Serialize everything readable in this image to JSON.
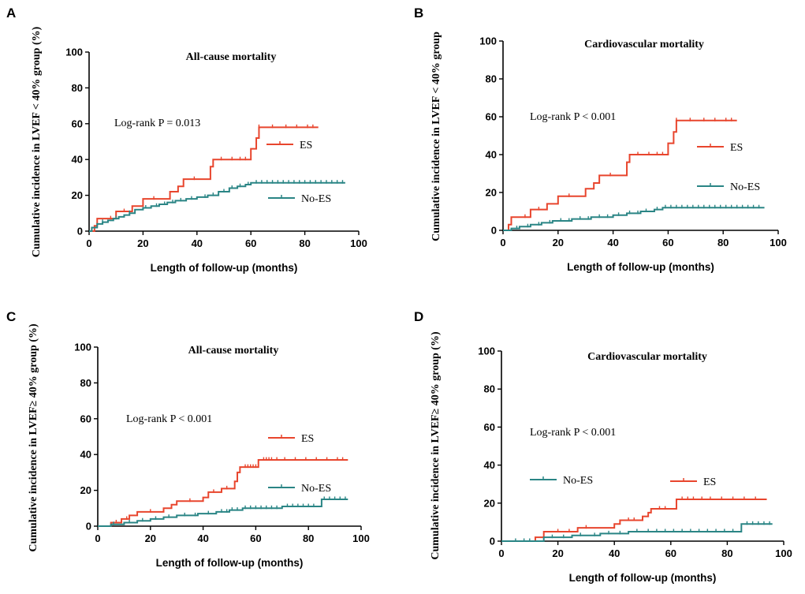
{
  "colors": {
    "ES": "#e8452d",
    "No-ES": "#2a8585",
    "axis": "#000000"
  },
  "chart_data": [
    {
      "panel": "A",
      "type": "line",
      "title": "All-cause mortality",
      "xlabel": "Length of follow-up (months)",
      "ylabel": "Cumulative incidence in LVEF < 40% group (%)",
      "xlim": [
        0,
        100
      ],
      "ylim": [
        0,
        100
      ],
      "xticks": [
        0,
        20,
        40,
        60,
        80,
        100
      ],
      "yticks": [
        0,
        20,
        40,
        60,
        80,
        100
      ],
      "annotation": "Log-rank P = 0.013",
      "series": [
        {
          "name": "ES",
          "steps": [
            [
              0,
              0
            ],
            [
              2,
              3
            ],
            [
              3,
              7
            ],
            [
              10,
              7
            ],
            [
              10,
              11
            ],
            [
              16,
              11
            ],
            [
              16,
              14
            ],
            [
              20,
              14
            ],
            [
              20,
              18
            ],
            [
              30,
              18
            ],
            [
              30,
              22
            ],
            [
              33,
              22
            ],
            [
              33,
              25
            ],
            [
              35,
              25
            ],
            [
              35,
              29
            ],
            [
              45,
              29
            ],
            [
              45,
              36
            ],
            [
              46,
              36
            ],
            [
              46,
              40
            ],
            [
              60,
              40
            ],
            [
              60,
              46
            ],
            [
              62,
              46
            ],
            [
              62,
              52
            ],
            [
              63,
              52
            ],
            [
              63,
              58
            ],
            [
              85,
              58
            ]
          ],
          "censor": [
            8,
            13,
            24,
            39,
            49,
            53,
            56,
            58,
            63,
            68,
            73,
            77,
            81,
            83
          ]
        },
        {
          "name": "No-ES",
          "steps": [
            [
              0,
              0
            ],
            [
              1,
              2
            ],
            [
              3,
              4
            ],
            [
              5,
              5
            ],
            [
              7,
              6
            ],
            [
              9,
              7
            ],
            [
              11,
              8
            ],
            [
              13,
              9
            ],
            [
              15,
              10
            ],
            [
              17,
              12
            ],
            [
              20,
              13
            ],
            [
              23,
              14
            ],
            [
              26,
              15
            ],
            [
              29,
              16
            ],
            [
              32,
              17
            ],
            [
              36,
              18
            ],
            [
              40,
              19
            ],
            [
              44,
              20
            ],
            [
              48,
              22
            ],
            [
              52,
              24
            ],
            [
              55,
              25
            ],
            [
              58,
              26
            ],
            [
              60,
              27
            ],
            [
              95,
              27
            ]
          ],
          "censor": [
            5,
            10,
            15,
            21,
            25,
            28,
            31,
            34,
            38,
            43,
            46,
            50,
            53,
            56,
            59,
            62,
            64,
            66,
            68,
            70,
            72,
            74,
            76,
            78,
            80,
            82,
            84,
            86,
            88,
            90,
            92,
            94
          ]
        }
      ]
    },
    {
      "panel": "B",
      "type": "line",
      "title": "Cardiovascular mortality",
      "xlabel": "Length of follow-up (months)",
      "ylabel": "Cumulative incidence in LVEF < 40% group",
      "xlim": [
        0,
        100
      ],
      "ylim": [
        0,
        100
      ],
      "xticks": [
        0,
        20,
        40,
        60,
        80,
        100
      ],
      "yticks": [
        0,
        20,
        40,
        60,
        80,
        100
      ],
      "annotation": "Log-rank P < 0.001",
      "series": [
        {
          "name": "ES",
          "steps": [
            [
              0,
              0
            ],
            [
              2,
              3
            ],
            [
              3,
              7
            ],
            [
              10,
              7
            ],
            [
              10,
              11
            ],
            [
              16,
              11
            ],
            [
              16,
              14
            ],
            [
              20,
              14
            ],
            [
              20,
              18
            ],
            [
              30,
              18
            ],
            [
              30,
              22
            ],
            [
              33,
              22
            ],
            [
              33,
              25
            ],
            [
              35,
              25
            ],
            [
              35,
              29
            ],
            [
              45,
              29
            ],
            [
              45,
              36
            ],
            [
              46,
              36
            ],
            [
              46,
              40
            ],
            [
              60,
              40
            ],
            [
              60,
              46
            ],
            [
              62,
              46
            ],
            [
              62,
              52
            ],
            [
              63,
              52
            ],
            [
              63,
              58
            ],
            [
              85,
              58
            ]
          ],
          "censor": [
            8,
            13,
            24,
            39,
            49,
            53,
            56,
            58,
            63,
            68,
            73,
            77,
            81,
            83
          ]
        },
        {
          "name": "No-ES",
          "steps": [
            [
              0,
              0
            ],
            [
              3,
              1
            ],
            [
              6,
              2
            ],
            [
              10,
              3
            ],
            [
              14,
              4
            ],
            [
              18,
              5
            ],
            [
              25,
              6
            ],
            [
              32,
              7
            ],
            [
              40,
              8
            ],
            [
              45,
              9
            ],
            [
              50,
              10
            ],
            [
              55,
              11
            ],
            [
              58,
              12
            ],
            [
              95,
              12
            ]
          ],
          "censor": [
            5,
            9,
            13,
            17,
            21,
            24,
            28,
            31,
            35,
            38,
            42,
            46,
            49,
            52,
            56,
            59,
            61,
            63,
            65,
            67,
            69,
            71,
            73,
            75,
            77,
            79,
            81,
            83,
            85,
            87,
            89,
            91,
            93
          ]
        }
      ]
    },
    {
      "panel": "C",
      "type": "line",
      "title": "All-cause mortality",
      "xlabel": "Length of follow-up (months)",
      "ylabel": "Cumulative incidence in LVEF≥ 40% group (%)",
      "xlim": [
        0,
        100
      ],
      "ylim": [
        0,
        100
      ],
      "xticks": [
        0,
        20,
        40,
        60,
        80,
        100
      ],
      "yticks": [
        0,
        20,
        40,
        60,
        80,
        100
      ],
      "annotation": "Log-rank P < 0.001",
      "series": [
        {
          "name": "ES",
          "steps": [
            [
              0,
              0
            ],
            [
              5,
              0
            ],
            [
              5,
              2
            ],
            [
              9,
              2
            ],
            [
              9,
              4
            ],
            [
              12,
              4
            ],
            [
              12,
              6
            ],
            [
              15,
              6
            ],
            [
              15,
              8
            ],
            [
              25,
              8
            ],
            [
              25,
              10
            ],
            [
              28,
              10
            ],
            [
              28,
              12
            ],
            [
              30,
              12
            ],
            [
              30,
              14
            ],
            [
              40,
              14
            ],
            [
              40,
              16
            ],
            [
              42,
              16
            ],
            [
              42,
              19
            ],
            [
              47,
              19
            ],
            [
              47,
              21
            ],
            [
              52,
              21
            ],
            [
              52,
              25
            ],
            [
              53,
              25
            ],
            [
              53,
              30
            ],
            [
              54,
              30
            ],
            [
              54,
              33
            ],
            [
              61,
              33
            ],
            [
              61,
              37
            ],
            [
              95,
              37
            ]
          ],
          "censor": [
            7,
            11,
            20,
            35,
            44,
            49,
            56,
            57,
            58,
            59,
            60,
            63,
            64,
            65,
            66,
            68,
            71,
            75,
            79,
            83,
            87,
            91,
            93
          ]
        },
        {
          "name": "No-ES",
          "steps": [
            [
              0,
              0
            ],
            [
              5,
              1
            ],
            [
              10,
              2
            ],
            [
              15,
              3
            ],
            [
              20,
              4
            ],
            [
              25,
              5
            ],
            [
              30,
              6
            ],
            [
              38,
              7
            ],
            [
              45,
              8
            ],
            [
              50,
              9
            ],
            [
              55,
              10
            ],
            [
              70,
              10
            ],
            [
              70,
              11
            ],
            [
              85,
              11
            ],
            [
              85,
              15
            ],
            [
              95,
              15
            ]
          ],
          "censor": [
            6,
            12,
            17,
            22,
            27,
            33,
            37,
            42,
            47,
            49,
            51,
            53,
            56,
            58,
            60,
            62,
            64,
            66,
            68,
            72,
            74,
            76,
            78,
            80,
            82,
            86,
            88,
            90,
            92,
            94
          ]
        }
      ]
    },
    {
      "panel": "D",
      "type": "line",
      "title": "Cardiovascular mortality",
      "xlabel": "Length of follow-up (months)",
      "ylabel": "Cumulative incidence in LVEF≥ 40% group (%)",
      "xlim": [
        0,
        100
      ],
      "ylim": [
        0,
        100
      ],
      "xticks": [
        0,
        20,
        40,
        60,
        80,
        100
      ],
      "yticks": [
        0,
        20,
        40,
        60,
        80,
        100
      ],
      "annotation": "Log-rank P < 0.001",
      "series": [
        {
          "name": "ES",
          "steps": [
            [
              0,
              0
            ],
            [
              12,
              0
            ],
            [
              12,
              2
            ],
            [
              15,
              2
            ],
            [
              15,
              5
            ],
            [
              27,
              5
            ],
            [
              27,
              7
            ],
            [
              40,
              7
            ],
            [
              40,
              9
            ],
            [
              42,
              9
            ],
            [
              42,
              11
            ],
            [
              50,
              11
            ],
            [
              50,
              13
            ],
            [
              52,
              13
            ],
            [
              52,
              15
            ],
            [
              53,
              15
            ],
            [
              53,
              17
            ],
            [
              62,
              17
            ],
            [
              62,
              22
            ],
            [
              94,
              22
            ]
          ],
          "censor": [
            20,
            24,
            30,
            45,
            47,
            56,
            58,
            64,
            66,
            68,
            71,
            74,
            78,
            82,
            86,
            90
          ]
        },
        {
          "name": "No-ES",
          "steps": [
            [
              0,
              0
            ],
            [
              15,
              0
            ],
            [
              15,
              2
            ],
            [
              25,
              2
            ],
            [
              25,
              3
            ],
            [
              35,
              3
            ],
            [
              35,
              4
            ],
            [
              45,
              4
            ],
            [
              45,
              5
            ],
            [
              85,
              5
            ],
            [
              85,
              9
            ],
            [
              96,
              9
            ]
          ],
          "censor": [
            5,
            8,
            10,
            18,
            22,
            28,
            33,
            38,
            42,
            48,
            52,
            55,
            58,
            61,
            64,
            67,
            70,
            73,
            76,
            79,
            82,
            87,
            89,
            91,
            93,
            95
          ]
        }
      ]
    }
  ]
}
